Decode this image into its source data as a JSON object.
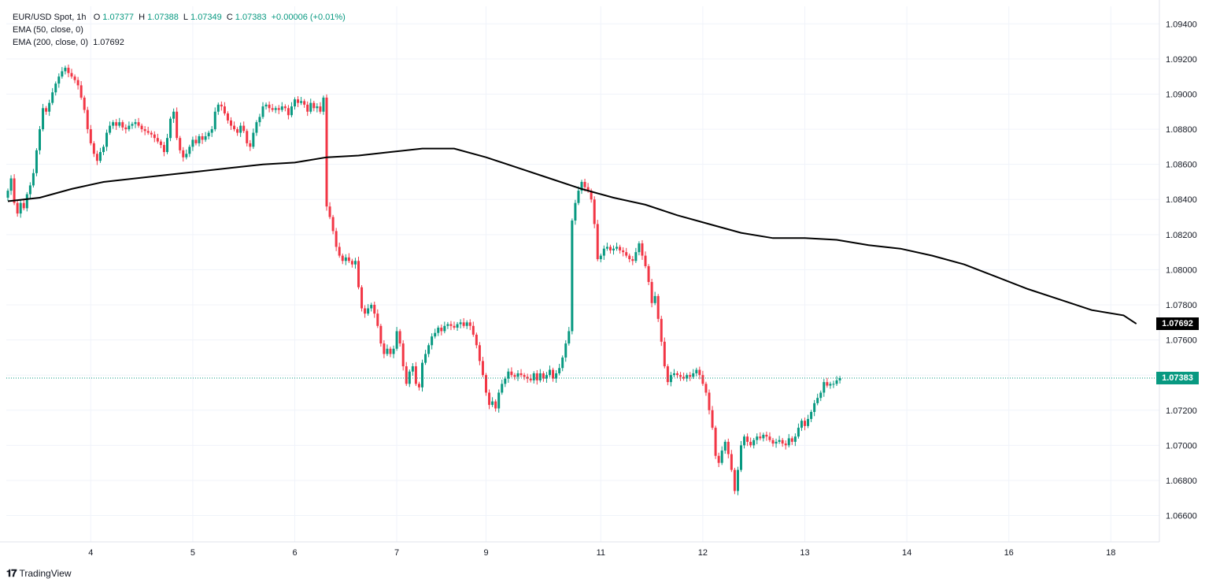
{
  "legend": {
    "symbol": "EUR/USD Spot, 1h",
    "open_label": "O",
    "open": "1.07377",
    "high_label": "H",
    "high": "1.07388",
    "low_label": "L",
    "low": "1.07349",
    "close_label": "C",
    "close": "1.07383",
    "change": "+0.00006 (+0.01%)",
    "ema50_label": "EMA (50, close, 0)",
    "ema200_label": "EMA (200, close, 0)",
    "ema200_value": "1.07692"
  },
  "price_tags": {
    "ema200": "1.07692",
    "last": "1.07383"
  },
  "brand": {
    "name": "TradingView"
  },
  "colors": {
    "up": "#089981",
    "down": "#f23645",
    "ema": "#000000",
    "grid": "#f0f3fa",
    "last_line": "#089981"
  },
  "chart_data": {
    "type": "candlestick",
    "title": "EUR/USD Spot, 1h",
    "ylim": [
      1.0645,
      1.095
    ],
    "y_ticks": [
      "1.09400",
      "1.09200",
      "1.09000",
      "1.08800",
      "1.08600",
      "1.08400",
      "1.08200",
      "1.08000",
      "1.07800",
      "1.07600",
      "1.07400",
      "1.07200",
      "1.07000",
      "1.06800",
      "1.06600"
    ],
    "x_ticks": [
      {
        "label": "4",
        "i": 26
      },
      {
        "label": "5",
        "i": 58
      },
      {
        "label": "6",
        "i": 90
      },
      {
        "label": "7",
        "i": 122
      },
      {
        "label": "9",
        "i": 150
      },
      {
        "label": "11",
        "i": 186
      },
      {
        "label": "12",
        "i": 218
      },
      {
        "label": "13",
        "i": 250
      },
      {
        "label": "14",
        "i": 282
      },
      {
        "label": "16",
        "i": 314
      },
      {
        "label": "18",
        "i": 346
      }
    ],
    "closes": [
      1.0845,
      1.0852,
      1.0838,
      1.0832,
      1.0838,
      1.0835,
      1.0843,
      1.0848,
      1.0855,
      1.0868,
      1.088,
      1.0892,
      1.089,
      1.0895,
      1.0901,
      1.0906,
      1.091,
      1.0913,
      1.0915,
      1.0912,
      1.091,
      1.0908,
      1.0905,
      1.0898,
      1.0891,
      1.088,
      1.0872,
      1.0866,
      1.0862,
      1.0867,
      1.087,
      1.0878,
      1.0882,
      1.0884,
      1.0882,
      1.0884,
      1.0881,
      1.088,
      1.0882,
      1.0883,
      1.0884,
      1.0882,
      1.088,
      1.0879,
      1.0878,
      1.0877,
      1.0875,
      1.0873,
      1.0871,
      1.0867,
      1.0875,
      1.0886,
      1.089,
      1.0875,
      1.0868,
      1.0864,
      1.0866,
      1.087,
      1.0874,
      1.0872,
      1.0876,
      1.0874,
      1.0876,
      1.0878,
      1.088,
      1.089,
      1.0894,
      1.0893,
      1.0889,
      1.0885,
      1.0882,
      1.088,
      1.0878,
      1.0882,
      1.0879,
      1.0872,
      1.087,
      1.0878,
      1.0884,
      1.0887,
      1.0893,
      1.0894,
      1.0892,
      1.0891,
      1.0892,
      1.0891,
      1.0893,
      1.0892,
      1.0888,
      1.0893,
      1.0897,
      1.0895,
      1.0896,
      1.0894,
      1.089,
      1.0895,
      1.0892,
      1.0893,
      1.089,
      1.0898,
      1.0836,
      1.083,
      1.0822,
      1.0813,
      1.0808,
      1.0805,
      1.0807,
      1.0805,
      1.0803,
      1.0805,
      1.079,
      1.0778,
      1.0775,
      1.0778,
      1.078,
      1.0775,
      1.0768,
      1.0758,
      1.0752,
      1.0755,
      1.0752,
      1.0755,
      1.0765,
      1.0758,
      1.0745,
      1.0735,
      1.0742,
      1.0745,
      1.0735,
      1.0733,
      1.0747,
      1.0752,
      1.0757,
      1.0762,
      1.0764,
      1.0767,
      1.0765,
      1.0768,
      1.0769,
      1.0768,
      1.0767,
      1.0769,
      1.077,
      1.0768,
      1.077,
      1.0768,
      1.0763,
      1.0757,
      1.0748,
      1.074,
      1.073,
      1.0723,
      1.0725,
      1.0721,
      1.073,
      1.0735,
      1.0738,
      1.0742,
      1.074,
      1.0739,
      1.0741,
      1.074,
      1.0739,
      1.0738,
      1.0737,
      1.0741,
      1.0737,
      1.0741,
      1.0738,
      1.074,
      1.0743,
      1.0738,
      1.0741,
      1.0744,
      1.075,
      1.0758,
      1.0765,
      1.0828,
      1.0838,
      1.0845,
      1.085,
      1.0847,
      1.0845,
      1.084,
      1.0826,
      1.0806,
      1.0808,
      1.0812,
      1.0813,
      1.0811,
      1.0812,
      1.0813,
      1.0811,
      1.081,
      1.0808,
      1.0806,
      1.0805,
      1.081,
      1.0815,
      1.0808,
      1.0802,
      1.0793,
      1.0781,
      1.0785,
      1.0772,
      1.0759,
      1.0745,
      1.0736,
      1.074,
      1.0741,
      1.074,
      1.0739,
      1.0738,
      1.074,
      1.0739,
      1.0741,
      1.0743,
      1.074,
      1.0735,
      1.073,
      1.072,
      1.071,
      1.0694,
      1.069,
      1.0697,
      1.0702,
      1.0695,
      1.0686,
      1.0674,
      1.0686,
      1.07,
      1.0705,
      1.0702,
      1.07,
      1.0703,
      1.0705,
      1.0704,
      1.0706,
      1.0705,
      1.0703,
      1.0701,
      1.0702,
      1.0703,
      1.0701,
      1.07,
      1.0704,
      1.0702,
      1.0705,
      1.071,
      1.0714,
      1.0711,
      1.0715,
      1.0719,
      1.0724,
      1.0727,
      1.073,
      1.0736,
      1.0734,
      1.0735,
      1.0735,
      1.0737,
      1.07383
    ],
    "ema200_points": [
      [
        0,
        1.0839
      ],
      [
        10,
        1.0841
      ],
      [
        20,
        1.0846
      ],
      [
        30,
        1.085
      ],
      [
        40,
        1.0852
      ],
      [
        50,
        1.0854
      ],
      [
        60,
        1.0856
      ],
      [
        70,
        1.0858
      ],
      [
        80,
        1.086
      ],
      [
        90,
        1.0861
      ],
      [
        100,
        1.0864
      ],
      [
        110,
        1.0865
      ],
      [
        120,
        1.0867
      ],
      [
        130,
        1.0869
      ],
      [
        140,
        1.0869
      ],
      [
        150,
        1.0864
      ],
      [
        160,
        1.0858
      ],
      [
        170,
        1.0852
      ],
      [
        180,
        1.0846
      ],
      [
        190,
        1.0841
      ],
      [
        200,
        1.0837
      ],
      [
        210,
        1.0831
      ],
      [
        220,
        1.0826
      ],
      [
        230,
        1.0821
      ],
      [
        240,
        1.0818
      ],
      [
        250,
        1.0818
      ],
      [
        260,
        1.0817
      ],
      [
        270,
        1.0814
      ],
      [
        280,
        1.0812
      ],
      [
        290,
        1.0808
      ],
      [
        300,
        1.0803
      ],
      [
        310,
        1.0796
      ],
      [
        320,
        1.0789
      ],
      [
        330,
        1.0783
      ],
      [
        340,
        1.0777
      ],
      [
        350,
        1.0774
      ],
      [
        354,
        1.07692
      ]
    ]
  }
}
